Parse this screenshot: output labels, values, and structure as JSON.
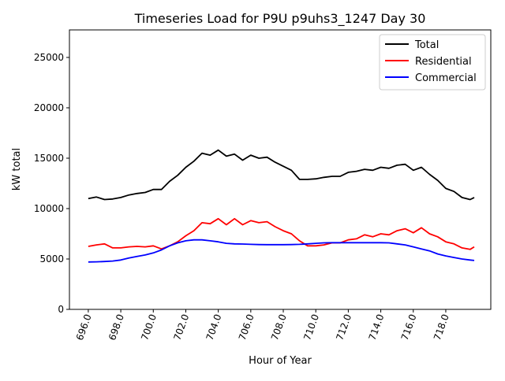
{
  "chart_data": {
    "type": "line",
    "title": "Timeseries Load for P9U p9uhs3_1247  Day 30",
    "xlabel": "Hour of Year",
    "ylabel": "kW total",
    "xlim": [
      694.84,
      720.77
    ],
    "ylim": [
      0,
      27730
    ],
    "xticks": [
      696,
      698,
      700,
      702,
      704,
      706,
      708,
      710,
      712,
      714,
      716,
      718
    ],
    "xtick_labels": [
      "696.0",
      "698.0",
      "700.0",
      "702.0",
      "704.0",
      "706.0",
      "708.0",
      "710.0",
      "712.0",
      "714.0",
      "716.0",
      "718.0"
    ],
    "yticks": [
      0,
      5000,
      10000,
      15000,
      20000,
      25000
    ],
    "ytick_labels": [
      "0",
      "5000",
      "10000",
      "15000",
      "20000",
      "25000"
    ],
    "grid": false,
    "legend_position": "top-right",
    "x": [
      696,
      696.5,
      697,
      697.5,
      698,
      698.5,
      699,
      699.5,
      700,
      700.5,
      701,
      701.5,
      702,
      702.5,
      703,
      703.5,
      704,
      704.5,
      705,
      705.5,
      706,
      706.5,
      707,
      707.5,
      708,
      708.5,
      709,
      709.5,
      710,
      710.5,
      711,
      711.5,
      712,
      712.5,
      713,
      713.5,
      714,
      714.5,
      715,
      715.5,
      716,
      716.5,
      717,
      717.5,
      718,
      718.5,
      719,
      719.5,
      719.75
    ],
    "series": [
      {
        "name": "Total",
        "color": "#000000",
        "values": [
          11000,
          11150,
          10900,
          10950,
          11100,
          11350,
          11500,
          11600,
          11900,
          11900,
          12700,
          13300,
          14100,
          14700,
          15500,
          15300,
          15800,
          15200,
          15400,
          14800,
          15300,
          15000,
          15100,
          14600,
          14200,
          13800,
          12900,
          12900,
          12950,
          13100,
          13200,
          13200,
          13600,
          13700,
          13900,
          13800,
          14100,
          14000,
          14300,
          14400,
          13800,
          14100,
          13400,
          12800,
          12000,
          11700,
          11100,
          10900,
          11100
        ]
      },
      {
        "name": "Residential",
        "color": "#ff0000",
        "values": [
          6250,
          6400,
          6500,
          6100,
          6100,
          6200,
          6250,
          6200,
          6300,
          6000,
          6300,
          6700,
          7300,
          7800,
          8600,
          8500,
          9000,
          8400,
          9000,
          8400,
          8800,
          8600,
          8700,
          8200,
          7800,
          7500,
          6800,
          6300,
          6300,
          6400,
          6600,
          6600,
          6900,
          7000,
          7400,
          7200,
          7500,
          7400,
          7800,
          8000,
          7600,
          8100,
          7500,
          7200,
          6700,
          6500,
          6100,
          5950,
          6200
        ]
      },
      {
        "name": "Commercial",
        "color": "#0000ff",
        "values": [
          4700,
          4720,
          4750,
          4800,
          4900,
          5100,
          5250,
          5400,
          5600,
          5900,
          6300,
          6600,
          6800,
          6900,
          6900,
          6800,
          6700,
          6550,
          6500,
          6480,
          6450,
          6430,
          6420,
          6420,
          6420,
          6430,
          6450,
          6500,
          6550,
          6600,
          6620,
          6620,
          6620,
          6620,
          6620,
          6620,
          6620,
          6600,
          6500,
          6400,
          6200,
          6000,
          5800,
          5500,
          5300,
          5150,
          5000,
          4900,
          4850
        ]
      }
    ]
  }
}
